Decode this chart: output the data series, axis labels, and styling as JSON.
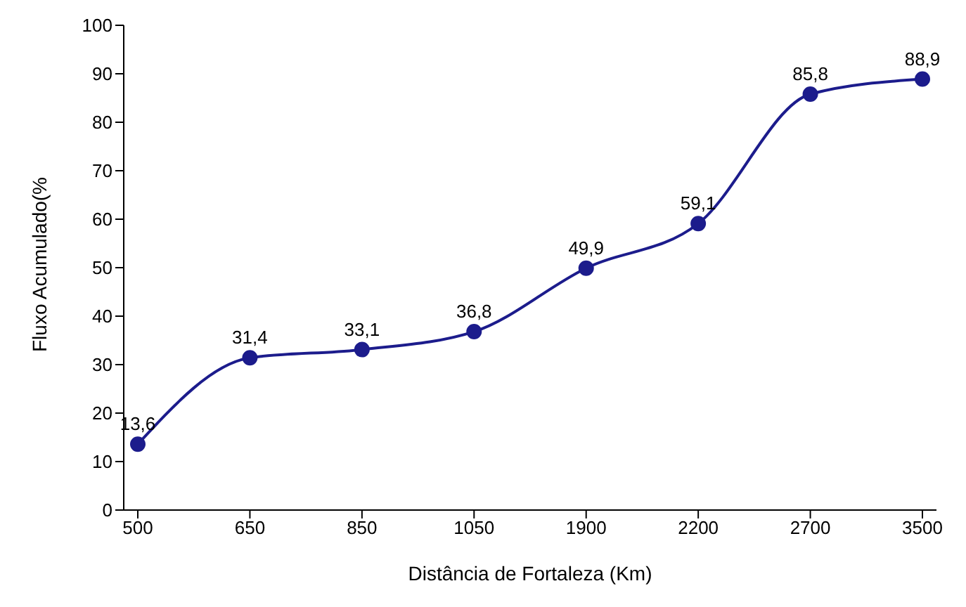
{
  "chart_data": {
    "type": "line",
    "xlabel": "Distância de Fortaleza (Km)",
    "ylabel": "Fluxo Acumulado(%",
    "categories": [
      "500",
      "650",
      "850",
      "1050",
      "1900",
      "2200",
      "2700",
      "3500"
    ],
    "series": [
      {
        "color": "#1c1c8c",
        "values": [
          13.6,
          31.4,
          33.1,
          36.8,
          49.9,
          59.1,
          85.8,
          88.9
        ],
        "value_labels": [
          "13,6",
          "31,4",
          "33,1",
          "36,8",
          "49,9",
          "59,1",
          "85,8",
          "88,9"
        ]
      }
    ],
    "ylim": [
      0,
      100
    ],
    "yticks": [
      0,
      10,
      20,
      30,
      40,
      50,
      60,
      70,
      80,
      90,
      100
    ],
    "grid": false,
    "legend": false,
    "marker": "circle",
    "line_style": "solid"
  }
}
